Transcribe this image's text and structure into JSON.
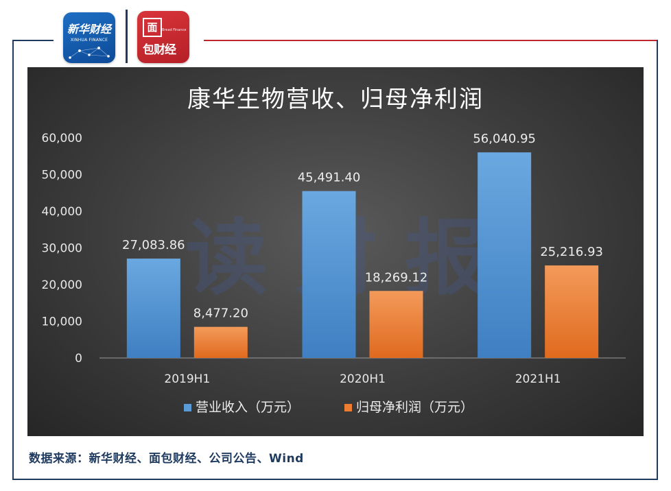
{
  "logos": {
    "xinhua_title": "新华财经",
    "xinhua_subtitle": "XINHUA FINANCE",
    "mianbao_top": "面",
    "mianbao_en": "Bread Finance",
    "mianbao_bottom": "包财经"
  },
  "watermark": "读财报",
  "source": "数据来源：新华财经、面包财经、公司公告、Wind",
  "colors": {
    "revenue": "#5b9bd5",
    "net_profit": "#ed7d31",
    "frame_navy": "#1f3a5f",
    "frame_red": "#c0262d"
  },
  "chart_data": {
    "type": "bar",
    "title": "康华生物营收、归母净利润",
    "categories": [
      "2019H1",
      "2020H1",
      "2021H1"
    ],
    "series": [
      {
        "name": "营业收入（万元）",
        "values": [
          27083.86,
          45491.4,
          56040.95
        ],
        "labels": [
          "27,083.86",
          "45,491.40",
          "56,040.95"
        ]
      },
      {
        "name": "归母净利润（万元）",
        "values": [
          8477.2,
          18269.12,
          25216.93
        ],
        "labels": [
          "8,477.20",
          "18,269.12",
          "25,216.93"
        ]
      }
    ],
    "y_ticks": [
      "0",
      "10,000",
      "20,000",
      "30,000",
      "40,000",
      "50,000",
      "60,000"
    ],
    "ylim": [
      0,
      60000
    ],
    "grid": false,
    "legend_position": "bottom"
  }
}
